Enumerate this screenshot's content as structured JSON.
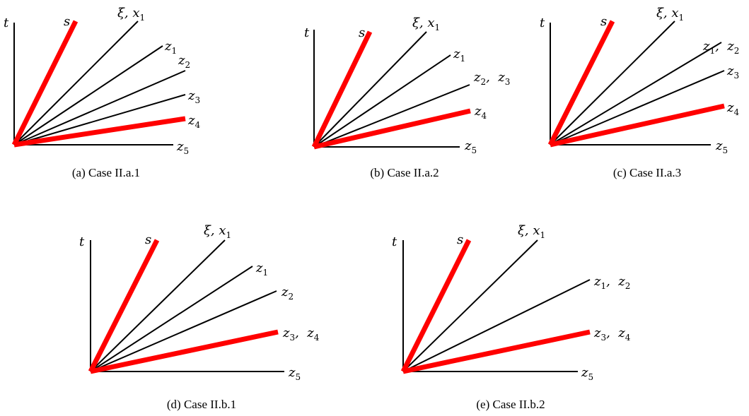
{
  "colors": {
    "axis": "#000000",
    "ray": "#000000",
    "highlight": "#ff0000"
  },
  "panels": [
    {
      "id": "a",
      "caption": "(a) Case II.a.1",
      "axis_label_t": "t",
      "rays": [
        {
          "label": "s",
          "sub": "",
          "highlight": true
        },
        {
          "label": "ξ, x",
          "sub": "1",
          "highlight": false
        },
        {
          "label": "z",
          "sub": "1",
          "highlight": false
        },
        {
          "label": "z",
          "sub": "2",
          "highlight": false
        },
        {
          "label": "z",
          "sub": "3",
          "highlight": false
        },
        {
          "label": "z",
          "sub": "4",
          "highlight": true
        },
        {
          "label": "z",
          "sub": "5",
          "highlight": false
        }
      ]
    },
    {
      "id": "b",
      "caption": "(b) Case II.a.2",
      "axis_label_t": "t",
      "rays": [
        {
          "label": "s",
          "sub": "",
          "highlight": true
        },
        {
          "label": "ξ, x",
          "sub": "1",
          "highlight": false
        },
        {
          "label": "z",
          "sub": "1",
          "highlight": false
        },
        {
          "label": "z",
          "sub": "2",
          "label2": "z",
          "sub2": "3",
          "highlight": false
        },
        {
          "label": "z",
          "sub": "4",
          "highlight": true
        },
        {
          "label": "z",
          "sub": "5",
          "highlight": false
        }
      ]
    },
    {
      "id": "c",
      "caption": "(c) Case II.a.3",
      "axis_label_t": "t",
      "rays": [
        {
          "label": "s",
          "sub": "",
          "highlight": true
        },
        {
          "label": "ξ, x",
          "sub": "1",
          "highlight": false
        },
        {
          "label": "z",
          "sub": "1",
          "label2": "z",
          "sub2": "2",
          "highlight": false
        },
        {
          "label": "z",
          "sub": "3",
          "highlight": false
        },
        {
          "label": "z",
          "sub": "4",
          "highlight": true
        },
        {
          "label": "z",
          "sub": "5",
          "highlight": false
        }
      ]
    },
    {
      "id": "d",
      "caption": "(d) Case II.b.1",
      "axis_label_t": "t",
      "rays": [
        {
          "label": "s",
          "sub": "",
          "highlight": true
        },
        {
          "label": "ξ, x",
          "sub": "1",
          "highlight": false
        },
        {
          "label": "z",
          "sub": "1",
          "highlight": false
        },
        {
          "label": "z",
          "sub": "2",
          "highlight": false
        },
        {
          "label": "z",
          "sub": "3",
          "label2": "z",
          "sub2": "4",
          "highlight": true
        },
        {
          "label": "z",
          "sub": "5",
          "highlight": false
        }
      ]
    },
    {
      "id": "e",
      "caption": "(e) Case II.b.2",
      "axis_label_t": "t",
      "rays": [
        {
          "label": "s",
          "sub": "",
          "highlight": true
        },
        {
          "label": "ξ, x",
          "sub": "1",
          "highlight": false
        },
        {
          "label": "z",
          "sub": "1",
          "label2": "z",
          "sub2": "2",
          "highlight": false
        },
        {
          "label": "z",
          "sub": "3",
          "label2": "z",
          "sub2": "4",
          "highlight": true
        },
        {
          "label": "z",
          "sub": "5",
          "highlight": false
        }
      ]
    }
  ]
}
